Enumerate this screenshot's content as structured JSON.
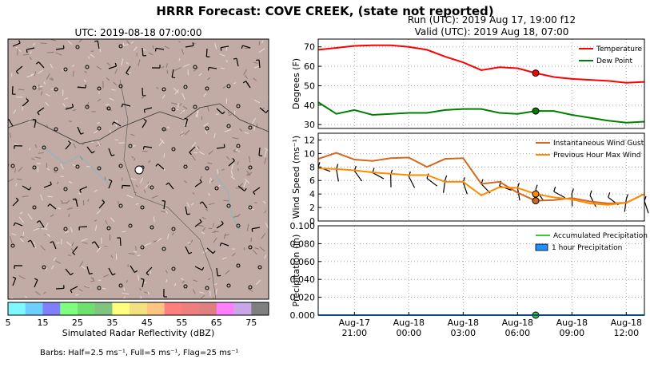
{
  "title": "HRRR Forecast: COVE CREEK, (state not reported)",
  "run_label": "Run (UTC): 2019 Aug 17, 19:00 f12",
  "valid_label": "Valid (UTC): 2019 Aug 18, 07:00",
  "map": {
    "title": "UTC: 2019-08-18 07:00:00",
    "colorbar_label": "Simulated Radar Reflectivity (dBZ)",
    "colorbar_ticks": [
      "5",
      "15",
      "25",
      "35",
      "45",
      "55",
      "65",
      "75"
    ],
    "colorbar_colors": [
      "#7ff7ff",
      "#6ccfff",
      "#7f7fff",
      "#7fff7f",
      "#6fdf6f",
      "#7fc47f",
      "#ffff7f",
      "#f3e07f",
      "#ffc47f",
      "#ff7f7f",
      "#ef7f7f",
      "#df7f7f",
      "#ff7fff",
      "#c7a7e7",
      "#7f7f7f"
    ],
    "barbs_note": "Barbs: Half=2.5 ms⁻¹, Full=5 ms⁻¹, Flag=25 ms⁻¹"
  },
  "chart_data": [
    {
      "type": "line",
      "ylabel": "Degrees (F)",
      "ylim": [
        28,
        74
      ],
      "yticks": [
        30,
        40,
        50,
        60,
        70
      ],
      "grid": true,
      "legend": "top-right",
      "x_hours": [
        0,
        1,
        2,
        3,
        4,
        5,
        6,
        7,
        8,
        9,
        10,
        11,
        12,
        13,
        14,
        15,
        16,
        17,
        18
      ],
      "series": [
        {
          "name": "Temperature",
          "color": "#ff0000",
          "values": [
            68.5,
            69.5,
            70.5,
            70.8,
            70.8,
            70,
            68.5,
            65,
            62,
            58,
            59.5,
            59,
            56.5,
            54.5,
            53.5,
            53,
            52.5,
            51.5,
            52
          ]
        },
        {
          "name": "Dew Point",
          "color": "#008000",
          "values": [
            41.5,
            35.5,
            37.5,
            35,
            35.5,
            36,
            36,
            37.5,
            38,
            38,
            36,
            35.5,
            37,
            37,
            35,
            33.5,
            32,
            31,
            31.5
          ]
        }
      ],
      "marker_hour": 12
    },
    {
      "type": "line",
      "ylabel": "Wind Speed (ms⁻¹)",
      "ylim": [
        0,
        13
      ],
      "yticks": [
        0,
        2,
        4,
        6,
        8,
        10,
        12
      ],
      "grid": true,
      "legend": "top-right",
      "x_hours": [
        0,
        1,
        2,
        3,
        4,
        5,
        6,
        7,
        8,
        9,
        10,
        11,
        12,
        13,
        14,
        15,
        16,
        17,
        18
      ],
      "series": [
        {
          "name": "Instantaneous Wind Gust",
          "color": "#d2691e",
          "values": [
            9.2,
            10.1,
            9.1,
            8.9,
            9.3,
            9.4,
            8,
            9.2,
            9.3,
            5.5,
            5.8,
            4.2,
            3,
            3.1,
            3.4,
            2.9,
            2.6,
            2.7,
            4
          ]
        },
        {
          "name": "Previous Hour Max Wind",
          "color": "#ff8c00",
          "values": [
            7.8,
            7.7,
            7.5,
            7.2,
            7,
            6.8,
            6.8,
            5.8,
            5.8,
            3.8,
            5,
            4.9,
            4,
            3.5,
            3.2,
            2.6,
            2.4,
            2.7,
            4
          ]
        }
      ],
      "marker_hour": 12
    },
    {
      "type": "area",
      "ylabel": "Precipitation (in)",
      "ylim": [
        0,
        0.1
      ],
      "yticks": [
        0.0,
        0.02,
        0.04,
        0.06,
        0.08,
        0.1
      ],
      "ytick_labels": [
        "0.000",
        "0.020",
        "0.040",
        "0.060",
        "0.080",
        "0.100"
      ],
      "grid": true,
      "legend": "top-right",
      "x_hours": [
        0,
        1,
        2,
        3,
        4,
        5,
        6,
        7,
        8,
        9,
        10,
        11,
        12,
        13,
        14,
        15,
        16,
        17,
        18
      ],
      "series": [
        {
          "name": "Accumulated Precipitation",
          "color": "#32cd32",
          "values": [
            0,
            0,
            0,
            0,
            0,
            0,
            0,
            0,
            0,
            0,
            0,
            0,
            0,
            0,
            0,
            0,
            0,
            0,
            0
          ]
        },
        {
          "name": "1 hour Precipitation",
          "color": "#1e90ff",
          "values": [
            0,
            0,
            0,
            0,
            0,
            0,
            0,
            0,
            0,
            0,
            0,
            0,
            0,
            0,
            0,
            0,
            0,
            0,
            0
          ]
        }
      ],
      "marker_hour": 12,
      "x_tick_hours": [
        2,
        5,
        8,
        11,
        14,
        17
      ],
      "x_tick_labels": [
        [
          "Aug-17",
          "21:00"
        ],
        [
          "Aug-18",
          "00:00"
        ],
        [
          "Aug-18",
          "03:00"
        ],
        [
          "Aug-18",
          "06:00"
        ],
        [
          "Aug-18",
          "09:00"
        ],
        [
          "Aug-18",
          "12:00"
        ]
      ]
    }
  ]
}
